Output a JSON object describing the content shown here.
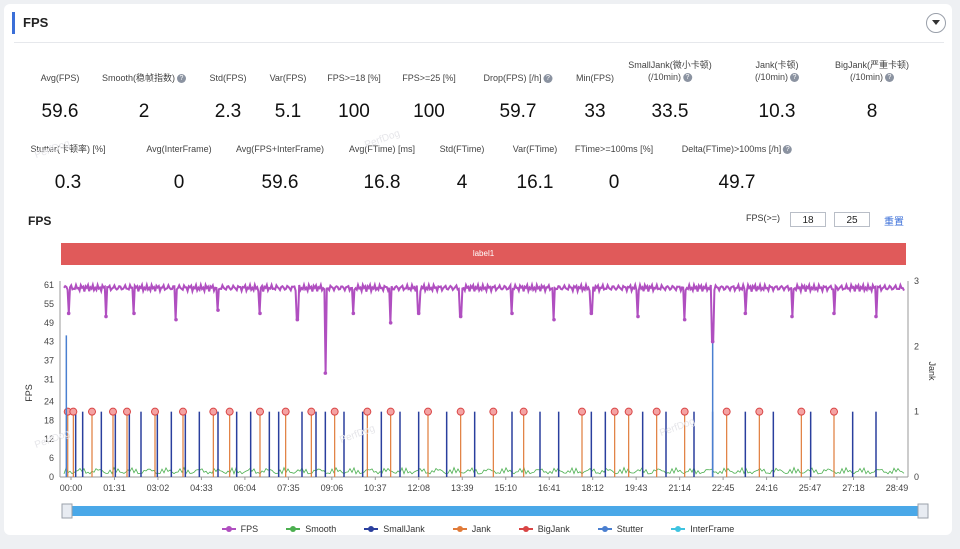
{
  "header": {
    "title": "FPS"
  },
  "metrics_row1": [
    {
      "label": "Avg(FPS)",
      "value": "59.6",
      "help": false
    },
    {
      "label": "Smooth(稳帧指数)",
      "value": "2",
      "help": true
    },
    {
      "label": "Std(FPS)",
      "value": "2.3",
      "help": false
    },
    {
      "label": "Var(FPS)",
      "value": "5.1",
      "help": false
    },
    {
      "label": "FPS>=18 [%]",
      "value": "100",
      "help": false
    },
    {
      "label": "FPS>=25 [%]",
      "value": "100",
      "help": false
    },
    {
      "label": "Drop(FPS) [/h]",
      "value": "59.7",
      "help": true
    },
    {
      "label": "Min(FPS)",
      "value": "33",
      "help": false
    },
    {
      "label": "SmallJank(微小卡顿)",
      "label2": "(/10min)",
      "value": "33.5",
      "help": true
    },
    {
      "label": "Jank(卡顿)",
      "label2": "(/10min)",
      "value": "10.3",
      "help": true
    },
    {
      "label": "BigJank(严重卡顿)",
      "label2": "(/10min)",
      "value": "8",
      "help": true
    }
  ],
  "metrics_row2": [
    {
      "label": "Stutter(卡顿率) [%]",
      "value": "0.3",
      "help": false
    },
    {
      "label": "Avg(InterFrame)",
      "value": "0",
      "help": false
    },
    {
      "label": "Avg(FPS+InterFrame)",
      "value": "59.6",
      "help": false
    },
    {
      "label": "Avg(FTime) [ms]",
      "value": "16.8",
      "help": false
    },
    {
      "label": "Std(FTime)",
      "value": "4",
      "help": false
    },
    {
      "label": "Var(FTime)",
      "value": "16.1",
      "help": false
    },
    {
      "label": "FTime>=100ms [%]",
      "value": "0",
      "help": false
    },
    {
      "label": "Delta(FTime)>100ms [/h]",
      "value": "49.7",
      "help": true
    }
  ],
  "chart_header": {
    "title": "FPS",
    "threshold_label": "FPS(>=)",
    "threshold_1": "18",
    "threshold_2": "25",
    "reset_label": "重置",
    "label_bar_text": "label1"
  },
  "watermark_text": "PerfDog",
  "chart_data": {
    "type": "line",
    "title": "FPS",
    "ylabel": "FPS",
    "y2label": "Jank",
    "ylim": [
      0,
      61
    ],
    "y2lim": [
      0,
      3
    ],
    "y_ticks": [
      0,
      6,
      12,
      18,
      24,
      31,
      37,
      43,
      49,
      55,
      61
    ],
    "y2_ticks": [
      0,
      1,
      2,
      3
    ],
    "x_ticks": [
      "00:00",
      "01:31",
      "03:02",
      "04:33",
      "06:04",
      "07:35",
      "09:06",
      "10:37",
      "12:08",
      "13:39",
      "15:10",
      "16:41",
      "18:12",
      "19:43",
      "21:14",
      "22:45",
      "24:16",
      "25:47",
      "27:18",
      "28:49"
    ],
    "duration_s": 1800,
    "fps_baseline": 59.6,
    "fps_dips": [
      {
        "t": 10,
        "fps": 52
      },
      {
        "t": 90,
        "fps": 51
      },
      {
        "t": 150,
        "fps": 52
      },
      {
        "t": 240,
        "fps": 50
      },
      {
        "t": 330,
        "fps": 53
      },
      {
        "t": 420,
        "fps": 52
      },
      {
        "t": 500,
        "fps": 50
      },
      {
        "t": 560,
        "fps": 33
      },
      {
        "t": 620,
        "fps": 52
      },
      {
        "t": 700,
        "fps": 49
      },
      {
        "t": 760,
        "fps": 52
      },
      {
        "t": 850,
        "fps": 51
      },
      {
        "t": 960,
        "fps": 52
      },
      {
        "t": 1050,
        "fps": 50
      },
      {
        "t": 1130,
        "fps": 52
      },
      {
        "t": 1230,
        "fps": 51
      },
      {
        "t": 1330,
        "fps": 50
      },
      {
        "t": 1390,
        "fps": 43
      },
      {
        "t": 1460,
        "fps": 52
      },
      {
        "t": 1560,
        "fps": 51
      },
      {
        "t": 1650,
        "fps": 52
      },
      {
        "t": 1740,
        "fps": 51
      }
    ],
    "bigjank_times": [
      8,
      20,
      60,
      105,
      135,
      195,
      255,
      320,
      355,
      420,
      475,
      530,
      580,
      650,
      700,
      780,
      850,
      920,
      985,
      1110,
      1180,
      1210,
      1270,
      1330,
      1420,
      1490,
      1580,
      1650
    ],
    "smalljank_times": [
      25,
      40,
      80,
      110,
      140,
      165,
      200,
      230,
      260,
      290,
      330,
      370,
      400,
      440,
      460,
      510,
      540,
      560,
      600,
      640,
      680,
      720,
      760,
      820,
      880,
      960,
      1020,
      1060,
      1130,
      1160,
      1240,
      1290,
      1350,
      1390,
      1460,
      1520,
      1600,
      1690,
      1740
    ],
    "series": [
      {
        "name": "FPS",
        "color": "#b04fc0"
      },
      {
        "name": "Smooth",
        "color": "#4caf50"
      },
      {
        "name": "SmallJank",
        "color": "#2a3f9e"
      },
      {
        "name": "Jank",
        "color": "#e07b3a"
      },
      {
        "name": "BigJank",
        "color": "#d94545"
      },
      {
        "name": "Stutter",
        "color": "#4a7fd0"
      },
      {
        "name": "InterFrame",
        "color": "#3fc3e0"
      }
    ]
  },
  "colors": {
    "accent": "#3b6fd8",
    "label_bar": "#e05a5a",
    "scroll_track": "#4aa8e8"
  }
}
